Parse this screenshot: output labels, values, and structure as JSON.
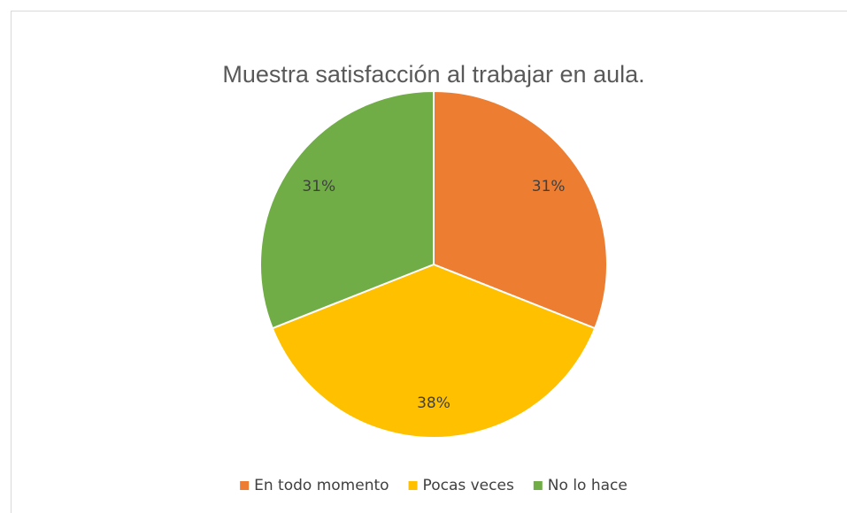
{
  "chart_data": {
    "type": "pie",
    "title": "Muestra satisfacción al trabajar en aula.",
    "categories": [
      "En todo momento",
      "Pocas veces",
      "No lo hace"
    ],
    "values": [
      31,
      38,
      31
    ],
    "value_labels": [
      "31%",
      "38%",
      "31%"
    ],
    "colors": [
      "#ed7d31",
      "#ffc000",
      "#70ad47"
    ],
    "legend": "bottom"
  }
}
